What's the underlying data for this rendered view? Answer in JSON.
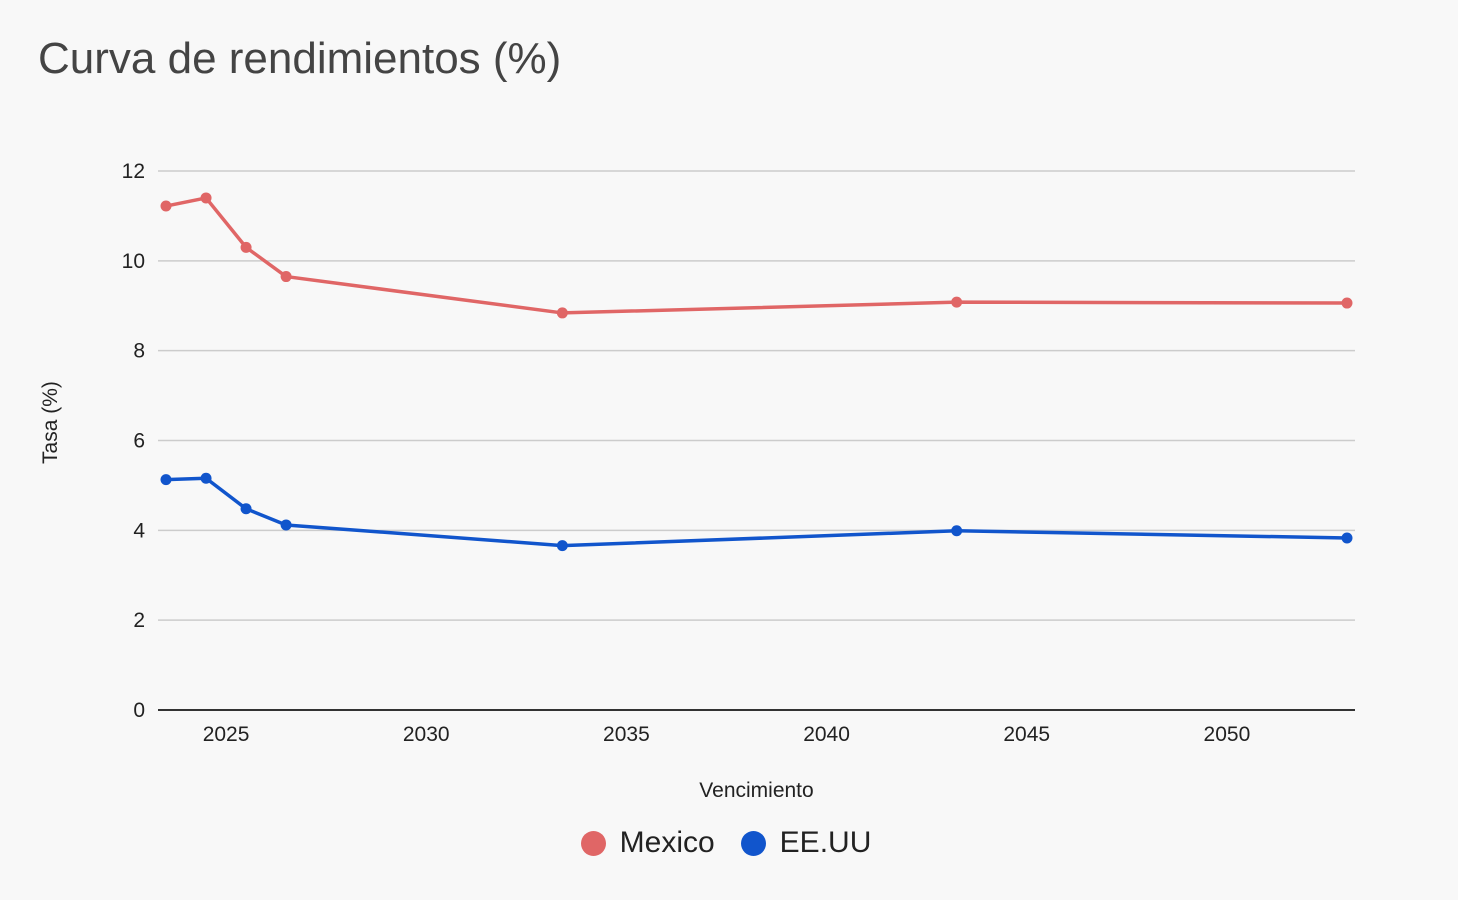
{
  "chart_data": {
    "type": "line",
    "title": "Curva de rendimientos (%)",
    "xlabel": "Vencimiento",
    "ylabel": "Tasa (%)",
    "xlim": [
      2023.3,
      2053.2
    ],
    "ylim": [
      0,
      12
    ],
    "x_ticks": [
      2025,
      2030,
      2035,
      2040,
      2045,
      2050
    ],
    "x_tick_labels": [
      "2025",
      "2030",
      "2035",
      "2040",
      "2045",
      "2050"
    ],
    "y_ticks": [
      0,
      2,
      4,
      6,
      8,
      10,
      12
    ],
    "y_tick_labels": [
      "0",
      "2",
      "4",
      "6",
      "8",
      "10",
      "12"
    ],
    "grid": true,
    "legend_position": "bottom",
    "series": [
      {
        "name": "Mexico",
        "color": "#e06666",
        "x": [
          2023.5,
          2024.5,
          2025.5,
          2026.5,
          2033.4,
          2043.25,
          2053.0
        ],
        "values": [
          11.22,
          11.4,
          10.3,
          9.65,
          8.84,
          9.08,
          9.06
        ]
      },
      {
        "name": "EE.UU",
        "color": "#1155cc",
        "x": [
          2023.5,
          2024.5,
          2025.5,
          2026.5,
          2033.4,
          2043.25,
          2053.0
        ],
        "values": [
          5.13,
          5.16,
          4.48,
          4.12,
          3.66,
          3.99,
          3.83
        ]
      }
    ]
  }
}
